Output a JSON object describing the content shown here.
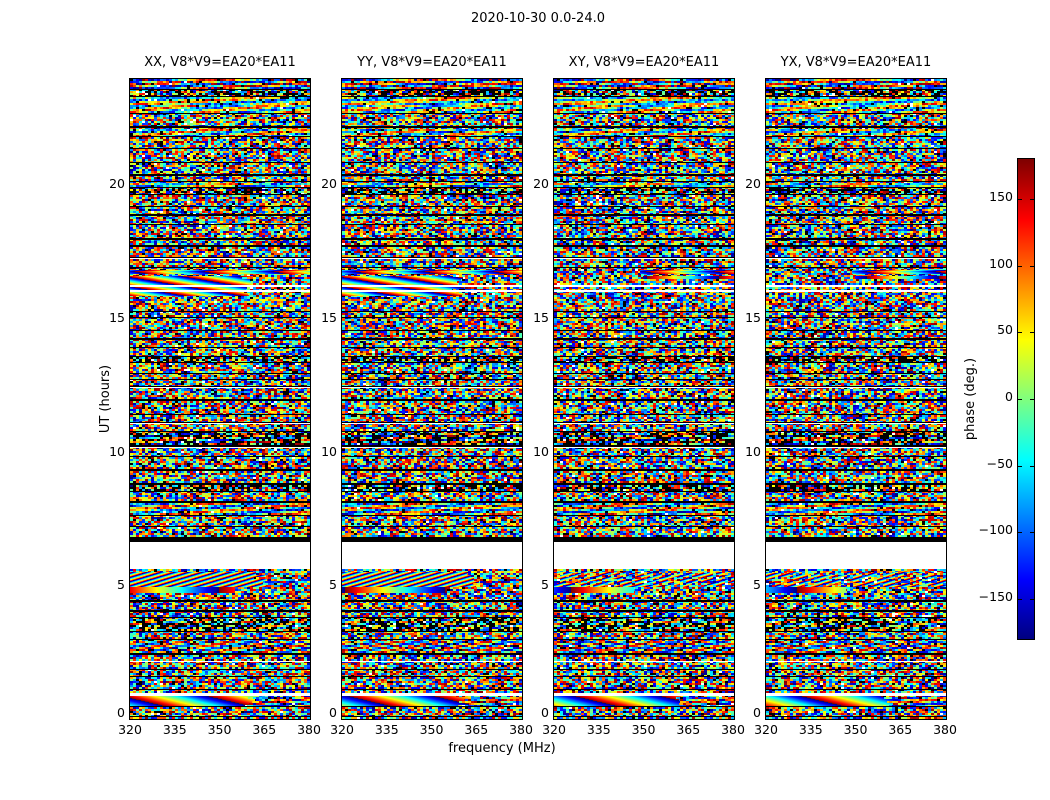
{
  "chart_data": {
    "type": "heatmap",
    "title": "2020-10-30 0.0-24.0",
    "xlabel": "frequency (MHz)",
    "ylabel": "UT (hours)",
    "x_range": [
      320,
      381
    ],
    "y_range": [
      0,
      24
    ],
    "x_ticks": [
      320,
      335,
      350,
      365,
      380
    ],
    "y_ticks": [
      0,
      5,
      10,
      15,
      20
    ],
    "grid": false,
    "panels": [
      {
        "label": "XX, V8*V9=EA20*EA11",
        "pol": "XX",
        "strong_features": true
      },
      {
        "label": "YY, V8*V9=EA20*EA11",
        "pol": "YY",
        "strong_features": true
      },
      {
        "label": "XY, V8*V9=EA20*EA11",
        "pol": "XY",
        "strong_features": false
      },
      {
        "label": "YX, V8*V9=EA20*EA11",
        "pol": "YX",
        "strong_features": false
      }
    ],
    "colorbar": {
      "label": "phase (deg.)",
      "ticks": [
        150,
        100,
        50,
        0,
        -50,
        -100,
        -150
      ],
      "vmin": -180,
      "vmax": 180,
      "colormap": "jet",
      "position": "right"
    },
    "features": {
      "missing_data_gap": {
        "ut_start": 5.62,
        "ut_end": 6.62,
        "value": "blank"
      },
      "black_row_above_gap": {
        "ut_start": 6.62,
        "ut_end": 6.82
      },
      "phase_wrap_band": {
        "ut_start": 15.85,
        "ut_end": 16.6,
        "strong_in": [
          "XX",
          "YY"
        ]
      },
      "thin_smooth_line": {
        "ut_start": 16.68,
        "ut_end": 16.82
      },
      "diagonal_stripe_band": {
        "ut_start": 4.95,
        "ut_end": 5.5,
        "strong_in": [
          "XX",
          "YY"
        ]
      },
      "smooth_gradient_row": {
        "ut_start": 4.72,
        "ut_end": 4.95
      },
      "bottom_smooth_band": {
        "ut_start": 0.5,
        "ut_end": 0.85
      },
      "bottom_white_row": {
        "ut_start": 0.85,
        "ut_end": 0.97
      }
    }
  }
}
